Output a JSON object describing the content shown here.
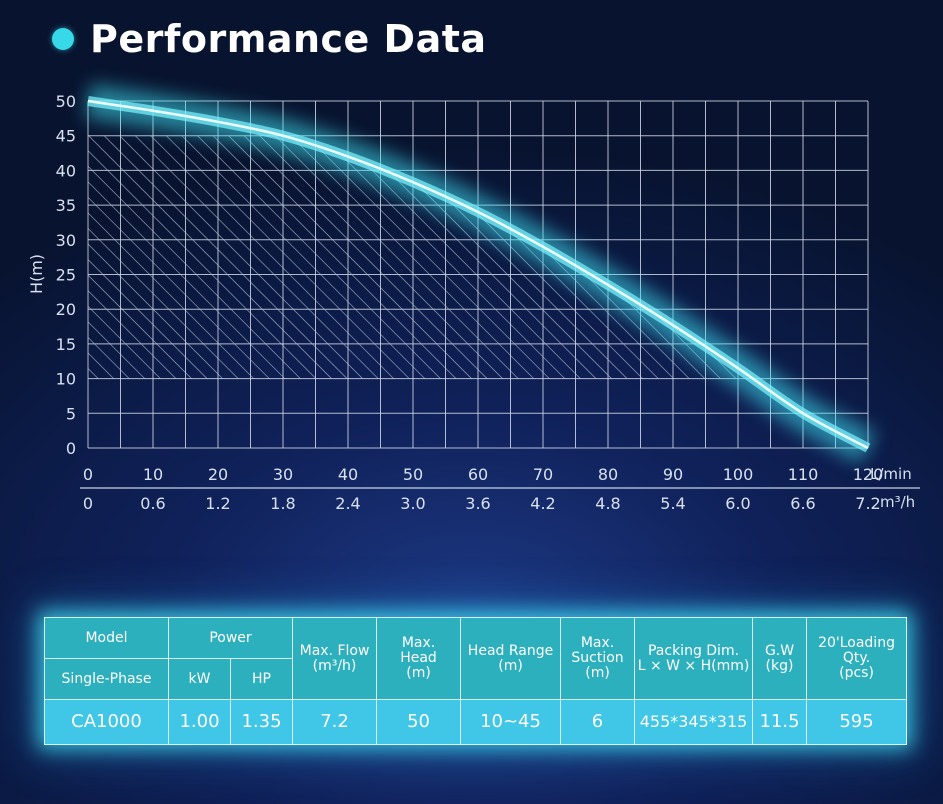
{
  "header": {
    "title": "Performance Data"
  },
  "chart_data": {
    "type": "area",
    "ylabel": "H(m)",
    "x_primary_unit": "L/min",
    "x_secondary_unit": "m³/h",
    "x_ticks": [
      "0",
      "10",
      "20",
      "30",
      "40",
      "50",
      "60",
      "70",
      "80",
      "90",
      "100",
      "110",
      "120"
    ],
    "x_secondary_ticks": [
      "0",
      "0.6",
      "1.2",
      "1.8",
      "2.4",
      "3.0",
      "3.6",
      "4.2",
      "4.8",
      "5.4",
      "6.0",
      "6.6",
      "7.2"
    ],
    "y_ticks": [
      "50",
      "45",
      "40",
      "35",
      "30",
      "25",
      "20",
      "15",
      "10",
      "5",
      "0"
    ],
    "xlim": [
      0,
      120
    ],
    "ylim": [
      0,
      50
    ],
    "head_range": [
      10,
      45
    ],
    "series": [
      {
        "name": "CA1000",
        "x": [
          0,
          10,
          20,
          30,
          40,
          50,
          60,
          70,
          80,
          90,
          100,
          110,
          120
        ],
        "y": [
          50,
          48.6,
          47,
          45,
          42,
          38.3,
          34,
          29,
          23.5,
          17.7,
          11.5,
          5,
          0
        ]
      }
    ]
  },
  "table": {
    "headers": {
      "model": "Model",
      "single_phase": "Single-Phase",
      "power": "Power",
      "kw": "kW",
      "hp": "HP",
      "max_flow": [
        "Max. Flow",
        "(m³/h)"
      ],
      "max_head": [
        "Max.",
        "Head",
        "(m)"
      ],
      "head_range": [
        "Head Range",
        "(m)"
      ],
      "max_suction": [
        "Max.",
        "Suction",
        "(m)"
      ],
      "packing": [
        "Packing Dim.",
        "L × W × H(mm)"
      ],
      "gw": [
        "G.W",
        "(kg)"
      ],
      "loading": [
        "20'Loading",
        "Qty.",
        "(pcs)"
      ]
    },
    "row": {
      "model": "CA1000",
      "kw": "1.00",
      "hp": "1.35",
      "max_flow": "7.2",
      "max_head": "50",
      "head_range": "10~45",
      "max_suction": "6",
      "packing": "455*345*315",
      "gw": "11.5",
      "loading": "595"
    }
  },
  "colors": {
    "accent": "#37d8e8",
    "curve": "#7ff4ff",
    "grid": "#d0d8e6",
    "table_header": "#2cb0be",
    "table_row": "#40c6e6"
  }
}
